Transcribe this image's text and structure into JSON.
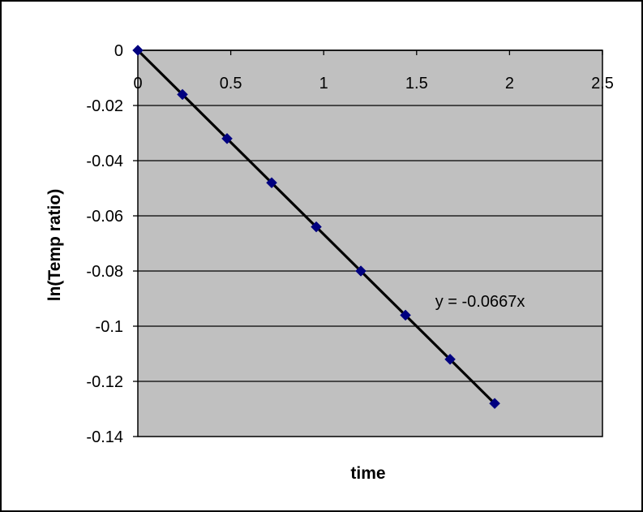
{
  "chart_data": {
    "type": "scatter",
    "xlabel": "time",
    "ylabel": "ln(Temp ratio)",
    "xlim": [
      0,
      2.5
    ],
    "ylim": [
      -0.14,
      0
    ],
    "x_ticks": [
      "0",
      "0.5",
      "1",
      "1.5",
      "2",
      "2.5"
    ],
    "y_ticks": [
      "0",
      "-0.02",
      "-0.04",
      "-0.06",
      "-0.08",
      "-0.1",
      "-0.12",
      "-0.14"
    ],
    "x_tick_values": [
      0,
      0.5,
      1,
      1.5,
      2,
      2.5
    ],
    "y_tick_values": [
      0,
      -0.02,
      -0.04,
      -0.06,
      -0.08,
      -0.1,
      -0.12,
      -0.14
    ],
    "grid": "horizontal",
    "series": [
      {
        "x": [
          0,
          0.24,
          0.48,
          0.72,
          0.96,
          1.2,
          1.44,
          1.68,
          1.92
        ],
        "y": [
          0,
          -0.016,
          -0.032,
          -0.048,
          -0.064,
          -0.08,
          -0.096,
          -0.112,
          -0.128
        ],
        "marker": "diamond",
        "color": "#000080"
      }
    ],
    "trendline": {
      "slope": -0.0667,
      "intercept": 0,
      "x_range": [
        0,
        1.92
      ],
      "label": "y = -0.0667x",
      "label_x": 1.6,
      "label_y": -0.093
    },
    "plot_bg": "#c0c0c0",
    "line_color": "#000000"
  }
}
